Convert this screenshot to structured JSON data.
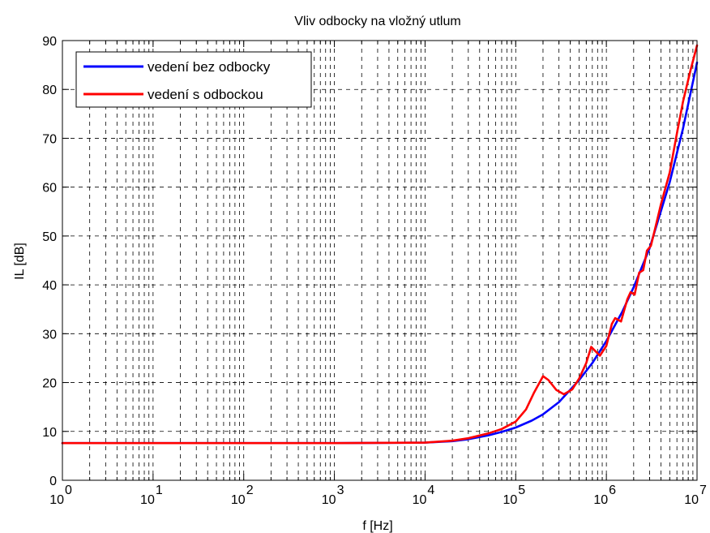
{
  "chart_data": {
    "type": "line",
    "title": "Vliv odbocky na vložný utlum",
    "xlabel": "f [Hz]",
    "ylabel": "IL [dB]",
    "xscale": "log",
    "xlim": [
      1,
      10000000
    ],
    "ylim": [
      0,
      90
    ],
    "x_ticks": [
      {
        "base": "10",
        "exp": "0"
      },
      {
        "base": "10",
        "exp": "1"
      },
      {
        "base": "10",
        "exp": "2"
      },
      {
        "base": "10",
        "exp": "3"
      },
      {
        "base": "10",
        "exp": "4"
      },
      {
        "base": "10",
        "exp": "5"
      },
      {
        "base": "10",
        "exp": "6"
      },
      {
        "base": "10",
        "exp": "7"
      }
    ],
    "y_ticks": [
      "0",
      "10",
      "20",
      "30",
      "40",
      "50",
      "60",
      "70",
      "80",
      "90"
    ],
    "grid": true,
    "grid_style": "dashed",
    "legend_position": "top-left",
    "series": [
      {
        "name": "vedení bez odbocky",
        "color": "#0000ff",
        "x": [
          1,
          10,
          100,
          1000,
          10000,
          20000,
          30000,
          50000,
          70000,
          100000,
          150000,
          200000,
          300000,
          500000,
          700000,
          1000000,
          1500000,
          2000000,
          3000000,
          5000000,
          7000000,
          10000000
        ],
        "y": [
          7.6,
          7.6,
          7.6,
          7.6,
          7.7,
          8.0,
          8.4,
          9.2,
          9.9,
          10.8,
          12.2,
          13.5,
          16.0,
          20.5,
          24.0,
          28.5,
          34.5,
          39.5,
          47.5,
          61.0,
          72.0,
          85.5
        ]
      },
      {
        "name": "vedení s odbockou",
        "color": "#ff0000",
        "x": [
          1,
          10,
          100,
          1000,
          10000,
          20000,
          30000,
          50000,
          70000,
          100000,
          130000,
          160000,
          200000,
          230000,
          280000,
          340000,
          420000,
          500000,
          600000,
          680000,
          750000,
          850000,
          1000000,
          1150000,
          1250000,
          1450000,
          1700000,
          1850000,
          2050000,
          2300000,
          2550000,
          2800000,
          3100000,
          3500000,
          4000000,
          5000000,
          6000000,
          7000000,
          8500000,
          10000000
        ],
        "y": [
          7.6,
          7.6,
          7.6,
          7.6,
          7.7,
          8.1,
          8.6,
          9.6,
          10.5,
          12.0,
          14.5,
          18.0,
          21.3,
          20.5,
          18.5,
          17.6,
          18.6,
          20.8,
          24.0,
          27.3,
          26.5,
          25.5,
          27.5,
          32.0,
          33.2,
          32.5,
          37.0,
          38.5,
          38.0,
          42.5,
          43.0,
          47.0,
          48.0,
          52.0,
          56.5,
          63.0,
          71.0,
          77.5,
          84.0,
          89.0
        ]
      }
    ]
  }
}
